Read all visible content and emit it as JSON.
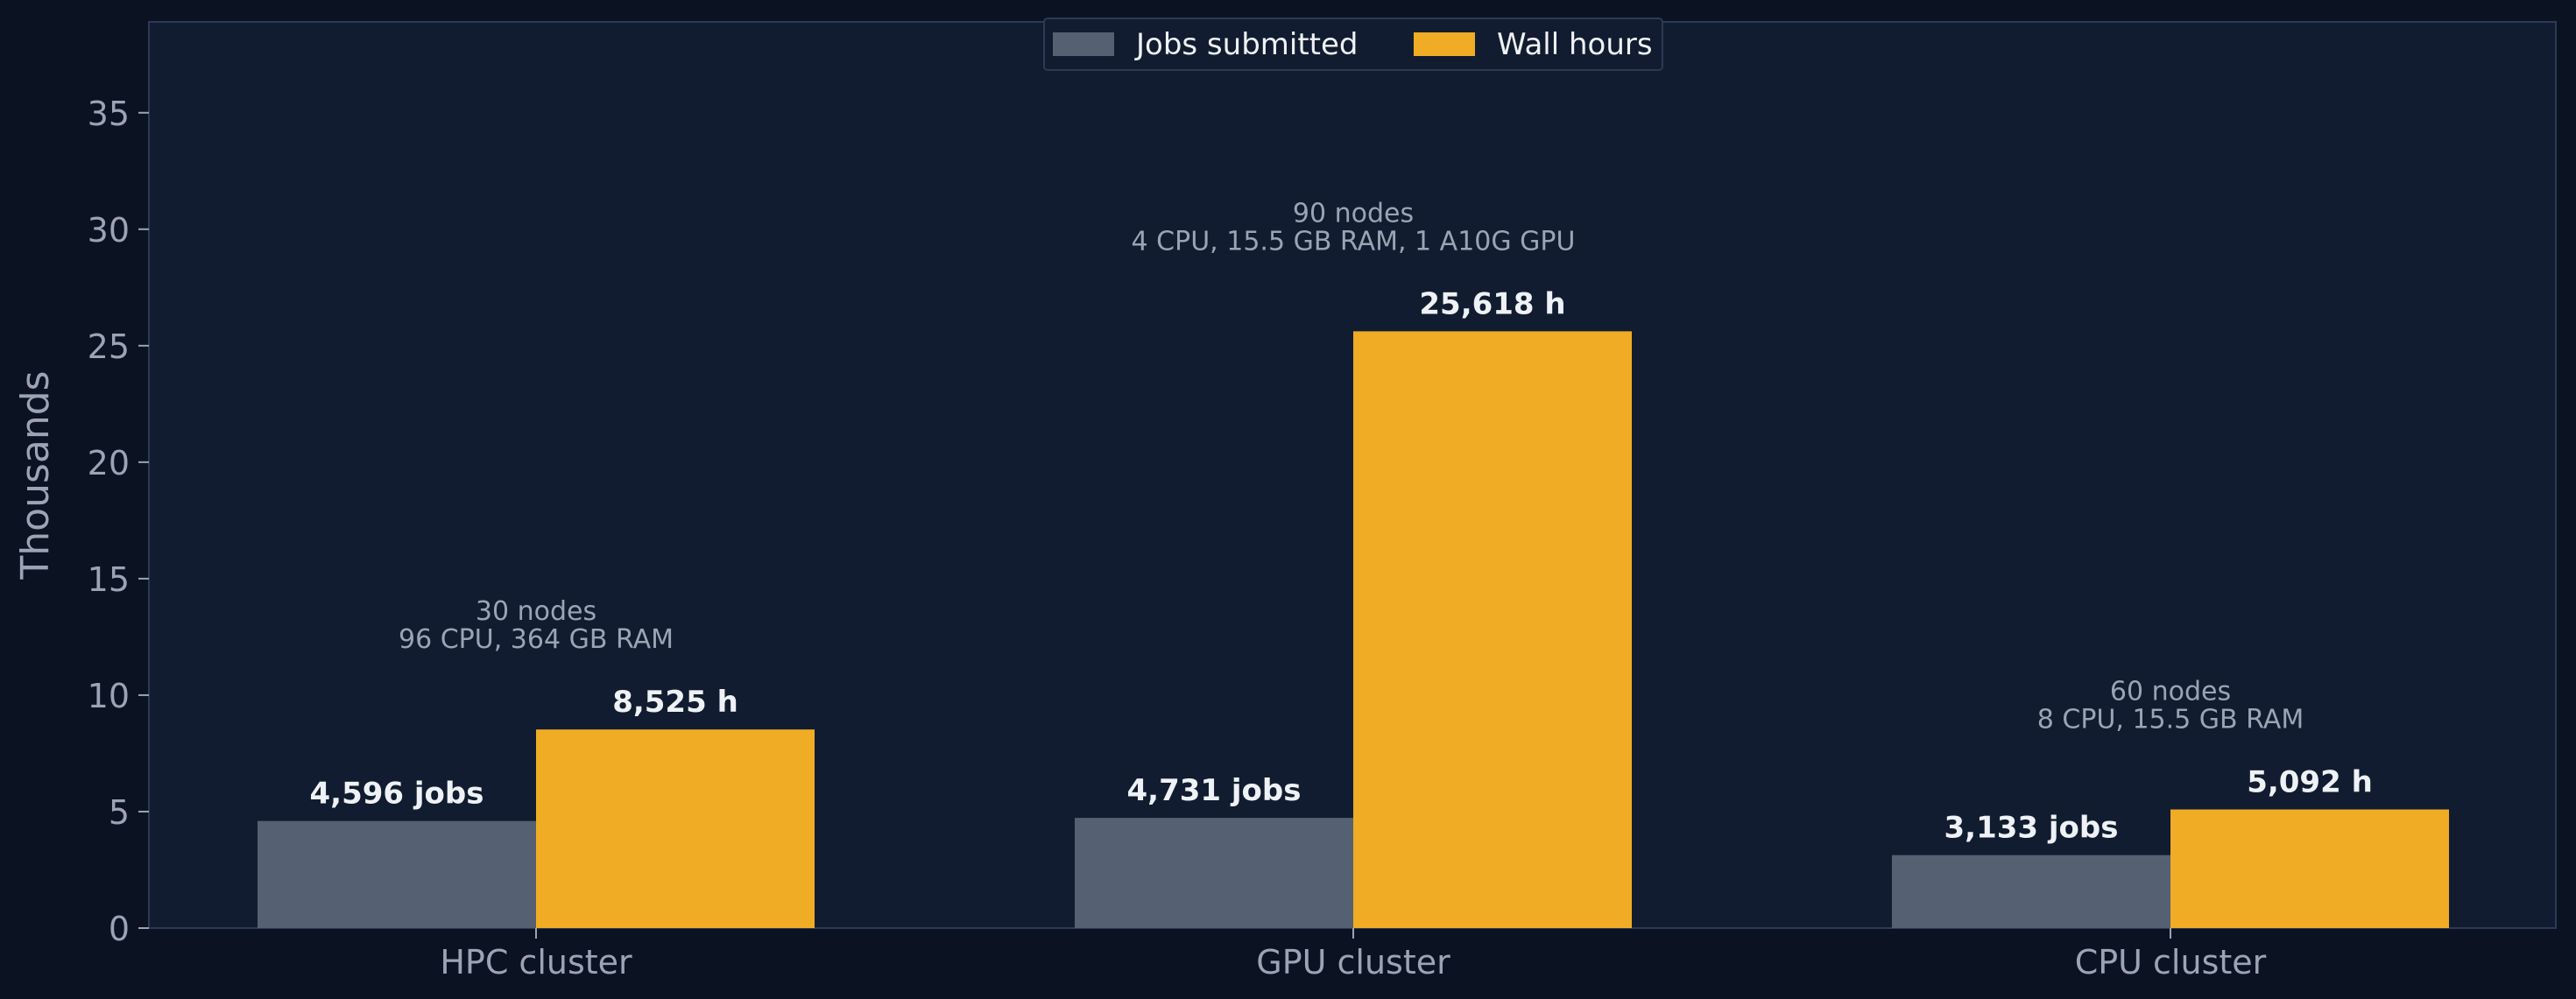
{
  "colors": {
    "background": "#0b1322",
    "plot_background": "#111c30",
    "frame": "#2b3a55",
    "axis_text": "#9aa4b4",
    "label_text": "#eef1f6",
    "jobs": "#556173",
    "wall_hours": "#f0ac24"
  },
  "chart_data": {
    "type": "bar",
    "ylabel": "Thousands",
    "xlabel": "",
    "ylim": [
      0,
      38.9
    ],
    "yticks": [
      0,
      5,
      10,
      15,
      20,
      25,
      30,
      35
    ],
    "grid": false,
    "legend_placement": "top-center",
    "categories": [
      "HPC cluster",
      "GPU cluster",
      "CPU cluster"
    ],
    "series": [
      {
        "name": "Jobs submitted",
        "color": "#556173",
        "values": [
          4.596,
          4.731,
          3.133
        ],
        "data_labels": [
          "4,596 jobs",
          "4,731 jobs",
          "3,133 jobs"
        ]
      },
      {
        "name": "Wall hours",
        "color": "#f0ac24",
        "values": [
          8.525,
          25.618,
          5.092
        ],
        "data_labels": [
          "8,525 h",
          "25,618 h",
          "5,092 h"
        ]
      }
    ],
    "annotations": [
      {
        "category": "HPC cluster",
        "lines": [
          "30 nodes",
          "96 CPU, 364 GB RAM"
        ]
      },
      {
        "category": "GPU cluster",
        "lines": [
          "90 nodes",
          "4 CPU, 15.5 GB RAM, 1 A10G GPU"
        ]
      },
      {
        "category": "CPU cluster",
        "lines": [
          "60 nodes",
          "8 CPU, 15.5 GB RAM"
        ]
      }
    ]
  }
}
